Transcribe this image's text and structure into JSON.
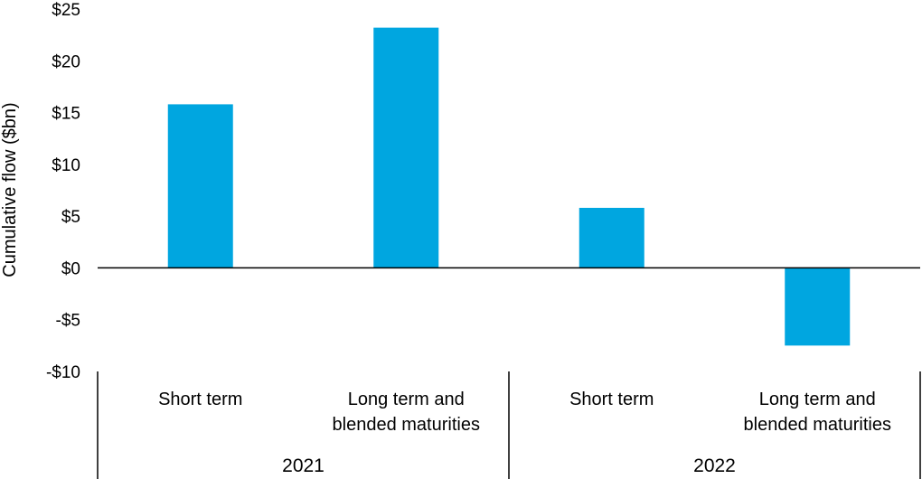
{
  "chart_data": {
    "type": "bar",
    "ylabel": "Cumulative flow ($bn)",
    "ylim": [
      -10,
      25
    ],
    "y_ticks": [
      {
        "value": 25,
        "label": "$25"
      },
      {
        "value": 20,
        "label": "$20"
      },
      {
        "value": 15,
        "label": "$15"
      },
      {
        "value": 10,
        "label": "$10"
      },
      {
        "value": 5,
        "label": "$5"
      },
      {
        "value": 0,
        "label": "$0"
      },
      {
        "value": -5,
        "label": "-$5"
      },
      {
        "value": -10,
        "label": "-$10"
      }
    ],
    "categories": [
      {
        "group": "2021",
        "lines": [
          "Short term"
        ],
        "value": 15.8
      },
      {
        "group": "2021",
        "lines": [
          "Long term and",
          "blended maturities"
        ],
        "value": 23.2
      },
      {
        "group": "2022",
        "lines": [
          "Short term"
        ],
        "value": 5.8
      },
      {
        "group": "2022",
        "lines": [
          "Long term and",
          "blended maturities"
        ],
        "value": -7.5
      }
    ],
    "groups": [
      "2021",
      "2022"
    ],
    "bar_color": "#00A6E0",
    "grid": false,
    "legend": "none"
  }
}
